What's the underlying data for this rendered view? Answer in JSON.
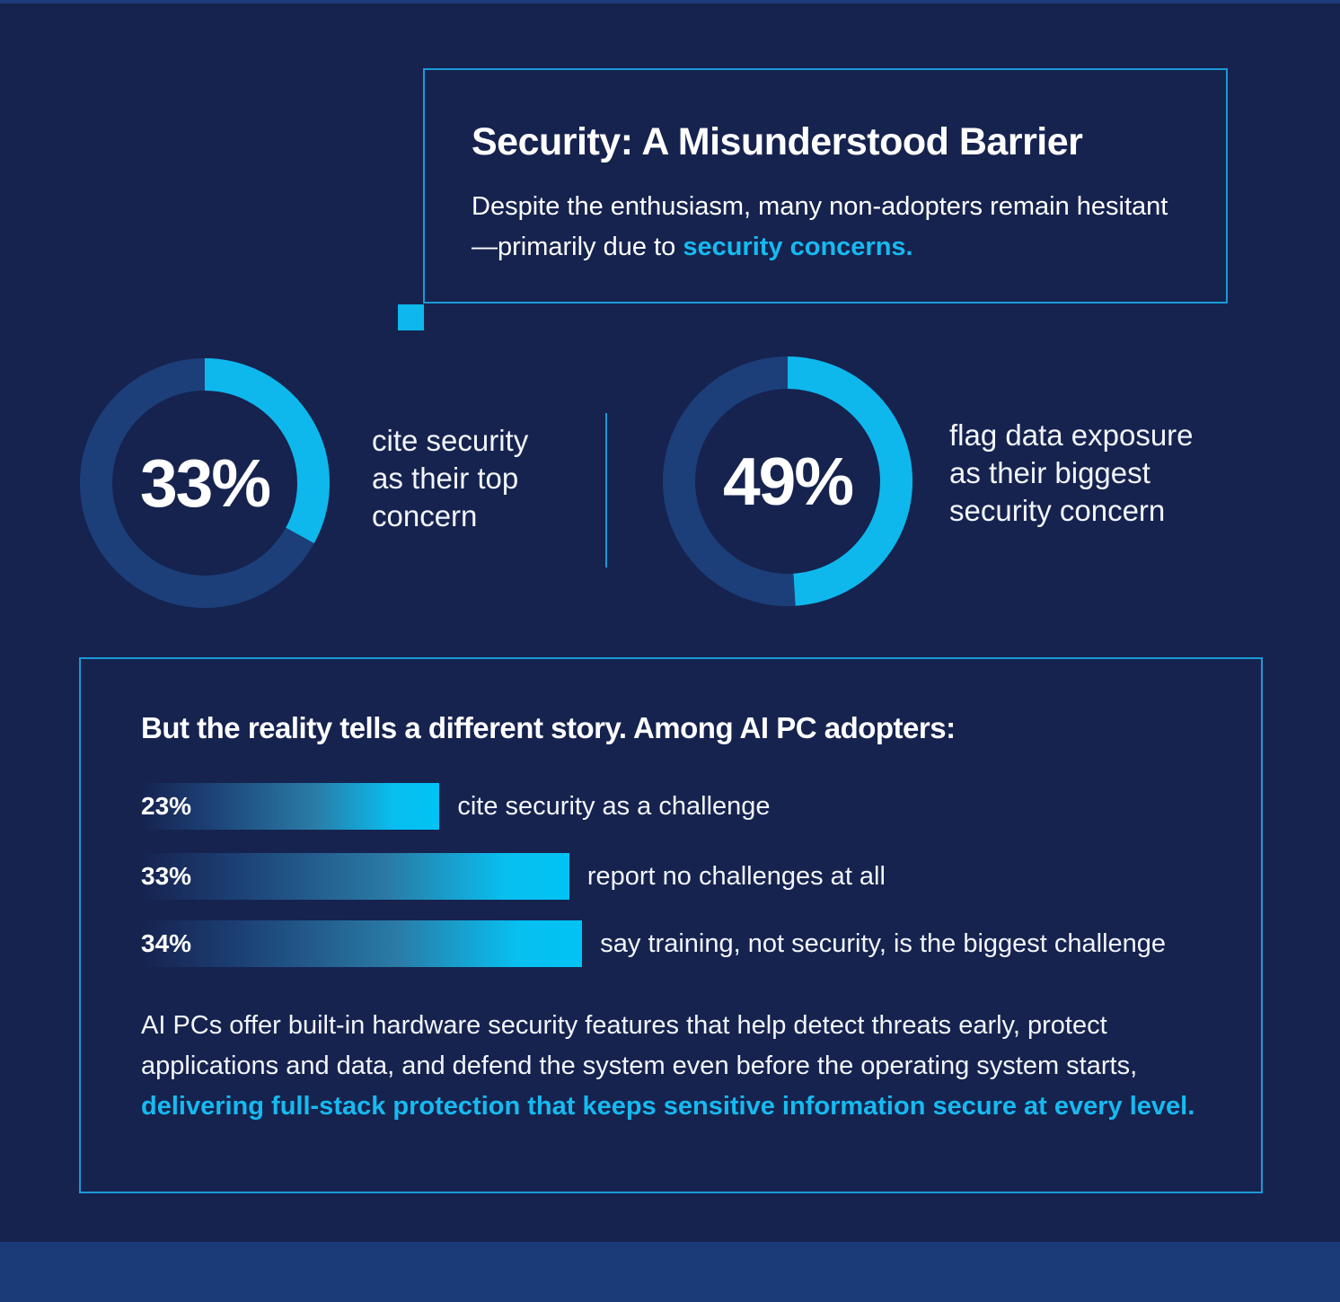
{
  "colors": {
    "background": "#16234f",
    "ring_track": "#1c3f7a",
    "accent": "#0eb8ec",
    "highlight_text": "#16baf0",
    "footer_band": "#1b3b78"
  },
  "intro": {
    "title": "Security: A Misunderstood Barrier",
    "text": "Despite the enthusiasm, many non-adopters remain hesitant—primarily due to ",
    "highlight": "security concerns."
  },
  "chart_data": [
    {
      "type": "pie",
      "subtype": "donut",
      "value": 33,
      "value_label": "33%",
      "caption_lines": [
        "cite security",
        "as their top",
        "concern"
      ]
    },
    {
      "type": "pie",
      "subtype": "donut",
      "value": 49,
      "value_label": "49%",
      "caption_lines": [
        "flag data exposure",
        "as their biggest",
        "security concern"
      ]
    },
    {
      "type": "bar",
      "orientation": "horizontal",
      "title": "But the reality tells a different story. Among AI PC adopters:",
      "categories": [
        "cite security as a challenge",
        "report no challenges at all",
        "say training, not security, is the biggest challenge"
      ],
      "values": [
        23,
        33,
        34
      ],
      "value_labels": [
        "23%",
        "33%",
        "34%"
      ]
    }
  ],
  "closing": {
    "text": "AI PCs offer built-in hardware security features that help detect threats early, protect applications and data, and defend the system even before the operating system starts, ",
    "highlight": "delivering full-stack protection that keeps sensitive information secure at every level."
  }
}
